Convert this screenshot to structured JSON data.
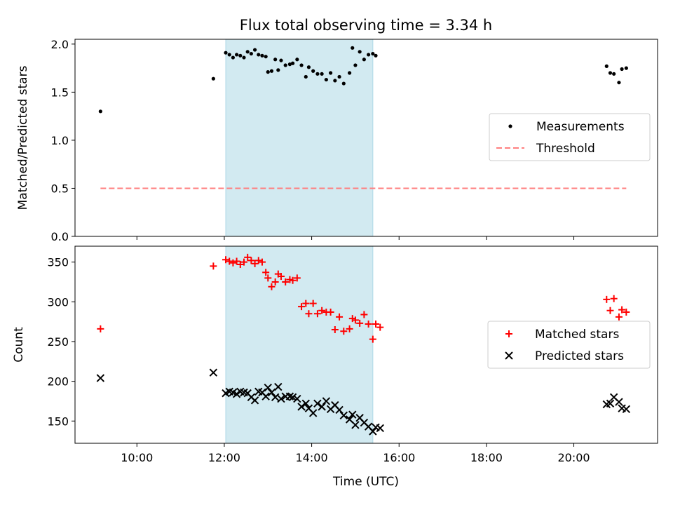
{
  "chart_data": {
    "title": "Flux total observing time = 3.34 h",
    "xlabel": "Time (UTC)",
    "x_range": [
      "08:35",
      "21:55"
    ],
    "x_ticks": [
      "10:00",
      "12:00",
      "14:00",
      "16:00",
      "18:00",
      "20:00"
    ],
    "shaded_span": {
      "start": "12:02",
      "end": "15:24",
      "color": "#add8e6"
    },
    "panels": [
      {
        "type": "scatter",
        "ylabel": "Matched/Predicted stars",
        "ylim": [
          0,
          2.05
        ],
        "y_ticks": [
          "0.0",
          "0.5",
          "1.0",
          "1.5",
          "2.0"
        ],
        "legend_position": "center-right",
        "series": [
          {
            "name": "Measurements",
            "marker": "dot",
            "color": "#000000",
            "points": [
              [
                "09:10",
                1.3
              ],
              [
                "11:45",
                1.64
              ],
              [
                "12:02",
                1.91
              ],
              [
                "12:07",
                1.89
              ],
              [
                "12:12",
                1.86
              ],
              [
                "12:17",
                1.89
              ],
              [
                "12:22",
                1.88
              ],
              [
                "12:27",
                1.86
              ],
              [
                "12:32",
                1.92
              ],
              [
                "12:37",
                1.9
              ],
              [
                "12:42",
                1.94
              ],
              [
                "12:47",
                1.89
              ],
              [
                "12:52",
                1.88
              ],
              [
                "12:57",
                1.87
              ],
              [
                "13:00",
                1.71
              ],
              [
                "13:05",
                1.72
              ],
              [
                "13:10",
                1.84
              ],
              [
                "13:14",
                1.73
              ],
              [
                "13:18",
                1.83
              ],
              [
                "13:24",
                1.78
              ],
              [
                "13:30",
                1.79
              ],
              [
                "13:34",
                1.8
              ],
              [
                "13:40",
                1.84
              ],
              [
                "13:46",
                1.78
              ],
              [
                "13:52",
                1.66
              ],
              [
                "13:56",
                1.76
              ],
              [
                "14:02",
                1.72
              ],
              [
                "14:08",
                1.69
              ],
              [
                "14:14",
                1.69
              ],
              [
                "14:20",
                1.63
              ],
              [
                "14:26",
                1.7
              ],
              [
                "14:32",
                1.62
              ],
              [
                "14:38",
                1.66
              ],
              [
                "14:44",
                1.59
              ],
              [
                "14:52",
                1.7
              ],
              [
                "14:56",
                1.96
              ],
              [
                "15:00",
                1.78
              ],
              [
                "15:06",
                1.92
              ],
              [
                "15:12",
                1.84
              ],
              [
                "15:18",
                1.89
              ],
              [
                "15:24",
                1.9
              ],
              [
                "15:28",
                1.88
              ],
              [
                "20:45",
                1.77
              ],
              [
                "20:50",
                1.7
              ],
              [
                "20:55",
                1.69
              ],
              [
                "21:02",
                1.6
              ],
              [
                "21:06",
                1.74
              ],
              [
                "21:12",
                1.75
              ]
            ]
          },
          {
            "name": "Threshold",
            "marker": "dashed-line",
            "color": "#ff7f7f",
            "points": [
              [
                "09:10",
                0.5
              ],
              [
                "21:12",
                0.5
              ]
            ]
          }
        ]
      },
      {
        "type": "scatter",
        "ylabel": "Count",
        "ylim": [
          122,
          370
        ],
        "y_ticks": [
          "150",
          "200",
          "250",
          "300",
          "350"
        ],
        "legend_position": "center-right",
        "series": [
          {
            "name": "Matched stars",
            "marker": "plus",
            "color": "#ff0000",
            "points": [
              [
                "09:10",
                266
              ],
              [
                "11:45",
                345
              ],
              [
                "12:02",
                353
              ],
              [
                "12:07",
                351
              ],
              [
                "12:12",
                349
              ],
              [
                "12:17",
                351
              ],
              [
                "12:22",
                347
              ],
              [
                "12:27",
                350
              ],
              [
                "12:32",
                356
              ],
              [
                "12:37",
                352
              ],
              [
                "12:42",
                348
              ],
              [
                "12:47",
                352
              ],
              [
                "12:52",
                350
              ],
              [
                "12:57",
                337
              ],
              [
                "13:00",
                330
              ],
              [
                "13:05",
                319
              ],
              [
                "13:10",
                325
              ],
              [
                "13:14",
                335
              ],
              [
                "13:18",
                332
              ],
              [
                "13:24",
                325
              ],
              [
                "13:30",
                328
              ],
              [
                "13:34",
                327
              ],
              [
                "13:40",
                330
              ],
              [
                "13:46",
                294
              ],
              [
                "13:52",
                298
              ],
              [
                "13:56",
                285
              ],
              [
                "14:02",
                298
              ],
              [
                "14:08",
                285
              ],
              [
                "14:14",
                289
              ],
              [
                "14:20",
                287
              ],
              [
                "14:26",
                287
              ],
              [
                "14:32",
                265
              ],
              [
                "14:38",
                281
              ],
              [
                "14:44",
                263
              ],
              [
                "14:52",
                266
              ],
              [
                "14:56",
                279
              ],
              [
                "15:00",
                277
              ],
              [
                "15:06",
                273
              ],
              [
                "15:12",
                284
              ],
              [
                "15:18",
                272
              ],
              [
                "15:24",
                253
              ],
              [
                "15:28",
                272
              ],
              [
                "15:34",
                268
              ],
              [
                "20:45",
                303
              ],
              [
                "20:50",
                289
              ],
              [
                "20:55",
                304
              ],
              [
                "21:02",
                281
              ],
              [
                "21:06",
                290
              ],
              [
                "21:12",
                287
              ]
            ]
          },
          {
            "name": "Predicted stars",
            "marker": "x",
            "color": "#000000",
            "points": [
              [
                "09:10",
                204
              ],
              [
                "11:45",
                211
              ],
              [
                "12:02",
                185
              ],
              [
                "12:07",
                187
              ],
              [
                "12:12",
                186
              ],
              [
                "12:17",
                184
              ],
              [
                "12:22",
                187
              ],
              [
                "12:27",
                186
              ],
              [
                "12:32",
                185
              ],
              [
                "12:37",
                180
              ],
              [
                "12:42",
                176
              ],
              [
                "12:47",
                187
              ],
              [
                "12:52",
                186
              ],
              [
                "12:57",
                181
              ],
              [
                "13:00",
                192
              ],
              [
                "13:05",
                186
              ],
              [
                "13:10",
                180
              ],
              [
                "13:14",
                193
              ],
              [
                "13:18",
                178
              ],
              [
                "13:24",
                181
              ],
              [
                "13:30",
                181
              ],
              [
                "13:34",
                180
              ],
              [
                "13:40",
                178
              ],
              [
                "13:46",
                168
              ],
              [
                "13:52",
                172
              ],
              [
                "13:56",
                166
              ],
              [
                "14:02",
                160
              ],
              [
                "14:08",
                172
              ],
              [
                "14:14",
                168
              ],
              [
                "14:20",
                175
              ],
              [
                "14:26",
                165
              ],
              [
                "14:32",
                170
              ],
              [
                "14:38",
                164
              ],
              [
                "14:44",
                157
              ],
              [
                "14:52",
                152
              ],
              [
                "14:56",
                158
              ],
              [
                "15:00",
                145
              ],
              [
                "15:06",
                154
              ],
              [
                "15:12",
                148
              ],
              [
                "15:18",
                143
              ],
              [
                "15:24",
                137
              ],
              [
                "15:28",
                142
              ],
              [
                "15:34",
                141
              ],
              [
                "20:45",
                171
              ],
              [
                "20:50",
                172
              ],
              [
                "20:55",
                180
              ],
              [
                "21:02",
                174
              ],
              [
                "21:06",
                166
              ],
              [
                "21:12",
                165
              ]
            ]
          }
        ]
      }
    ]
  }
}
